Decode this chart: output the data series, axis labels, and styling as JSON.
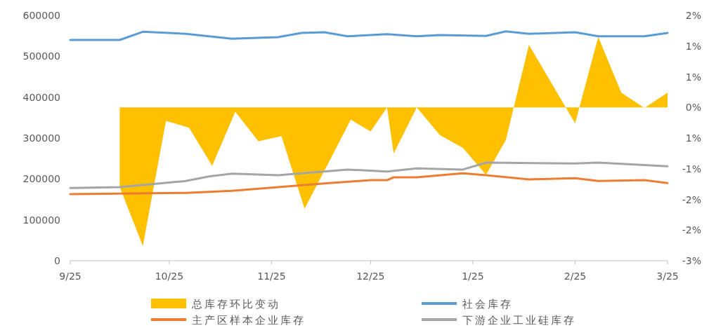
{
  "chart_data": {
    "type": "line",
    "xlim": [
      "2025-09-01",
      "2026-03-01"
    ],
    "xticks": [
      {
        "value": "2025-09-01",
        "label": "9/25"
      },
      {
        "value": "2025-10-01",
        "label": "10/25"
      },
      {
        "value": "2025-11-01",
        "label": "11/25"
      },
      {
        "value": "2025-12-01",
        "label": "12/25"
      },
      {
        "value": "2026-01-01",
        "label": "1/25"
      },
      {
        "value": "2026-02-01",
        "label": "2/25"
      },
      {
        "value": "2026-03-01",
        "label": "3/25"
      }
    ],
    "ylim": [
      0,
      600000
    ],
    "yticks": [
      0,
      100000,
      200000,
      300000,
      400000,
      500000,
      600000
    ],
    "y2lim": [
      -2.5,
      1.5
    ],
    "y2ticks": [
      {
        "value": 1.5,
        "label": "2%"
      },
      {
        "value": 1,
        "label": "1%"
      },
      {
        "value": 0.5,
        "label": "1%"
      },
      {
        "value": 0,
        "label": "0%"
      },
      {
        "value": -0.5,
        "label": "1%"
      },
      {
        "value": -1,
        "label": "-1%"
      },
      {
        "value": -1.5,
        "label": "-2%"
      },
      {
        "value": -2,
        "label": "-2%"
      },
      {
        "value": -2.5,
        "label": "-3%"
      }
    ],
    "grid": false,
    "legend": "bottom",
    "marker": "none",
    "series": [
      {
        "name": "总库存环比变动",
        "type": "area",
        "axis": "y2",
        "color": "#ffc000",
        "x": [
          "2025-09-16",
          "2025-09-23",
          "2025-09-30",
          "2025-10-07",
          "2025-10-14",
          "2025-10-21",
          "2025-10-28",
          "2025-11-04",
          "2025-11-11",
          "2025-11-18",
          "2025-11-25",
          "2025-12-01",
          "2025-12-06",
          "2025-12-08",
          "2025-12-15",
          "2025-12-22",
          "2025-12-29",
          "2026-01-05",
          "2026-01-11",
          "2026-01-18",
          "2026-02-01",
          "2026-02-08",
          "2026-02-15",
          "2026-02-22",
          "2026-03-01"
        ],
        "values": [
          -1.3,
          -2.26,
          -0.22,
          -0.33,
          -0.95,
          -0.07,
          -0.55,
          -0.47,
          -1.65,
          -0.93,
          -0.2,
          -0.39,
          0,
          -0.75,
          0,
          -0.45,
          -0.66,
          -1.1,
          -0.53,
          1.02,
          -0.26,
          1.15,
          0.24,
          -0.01,
          0.24
        ]
      },
      {
        "name": "社会库存",
        "type": "line",
        "color": "#5b9bd5",
        "x": [
          "2025-09-01",
          "2025-09-16",
          "2025-09-23",
          "2025-10-06",
          "2025-10-20",
          "2025-11-03",
          "2025-11-10",
          "2025-11-17",
          "2025-11-24",
          "2025-12-06",
          "2025-12-15",
          "2025-12-22",
          "2026-01-05",
          "2026-01-11",
          "2026-01-18",
          "2026-02-01",
          "2026-02-08",
          "2026-02-22",
          "2026-03-01"
        ],
        "values": [
          540000,
          540000,
          560000,
          555000,
          543000,
          547000,
          557000,
          559000,
          549000,
          554000,
          549000,
          552000,
          550000,
          561000,
          555000,
          559000,
          549000,
          549000,
          557000
        ]
      },
      {
        "name": "主产区样本企业库存",
        "type": "line",
        "color": "#ed7d31",
        "x": [
          "2025-09-01",
          "2025-10-06",
          "2025-10-20",
          "2025-11-03",
          "2025-11-17",
          "2025-12-01",
          "2025-12-06",
          "2025-12-08",
          "2025-12-15",
          "2025-12-29",
          "2026-01-05",
          "2026-01-18",
          "2026-02-01",
          "2026-02-08",
          "2026-02-22",
          "2026-03-01"
        ],
        "values": [
          163000,
          166000,
          171000,
          180000,
          189000,
          197000,
          197000,
          204000,
          204000,
          214000,
          209000,
          199000,
          202000,
          195000,
          197000,
          190000
        ]
      },
      {
        "name": "下游企业工业硅库存",
        "type": "line",
        "color": "#a5a5a5",
        "x": [
          "2025-09-01",
          "2025-09-16",
          "2025-10-06",
          "2025-10-13",
          "2025-10-20",
          "2025-11-03",
          "2025-11-24",
          "2025-12-06",
          "2025-12-15",
          "2025-12-29",
          "2026-01-05",
          "2026-02-01",
          "2026-02-08",
          "2026-03-01"
        ],
        "values": [
          178000,
          180000,
          195000,
          206000,
          213000,
          209000,
          223000,
          218000,
          226000,
          223000,
          240000,
          238000,
          240000,
          231000
        ]
      }
    ]
  }
}
